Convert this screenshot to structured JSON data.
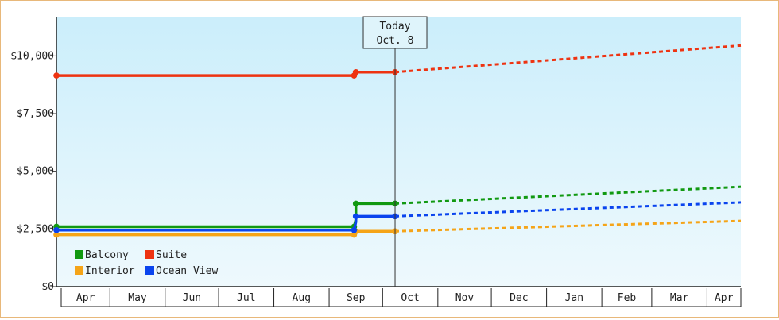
{
  "chart_data": {
    "type": "line",
    "today_label": "Today",
    "today_date": "Oct. 8",
    "today_x": "2024-10-08",
    "x_months": [
      "Apr",
      "May",
      "Jun",
      "Jul",
      "Aug",
      "Sep",
      "Oct",
      "Nov",
      "Dec",
      "Jan",
      "Feb",
      "Mar",
      "Apr"
    ],
    "x_range": [
      "2024-04-01",
      "2025-04-20"
    ],
    "ylim": [
      0,
      11700
    ],
    "y_ticks": [
      0,
      2500,
      5000,
      7500,
      10000
    ],
    "y_tick_labels": [
      "$0",
      "$2,500",
      "$5,000",
      "$7,500",
      "$10,000"
    ],
    "grid": false,
    "legend_position": "bottom-left",
    "series": [
      {
        "name": "Balcony",
        "color": "#119911",
        "historical": [
          [
            "2024-04-01",
            2600
          ],
          [
            "2024-09-15",
            2600
          ],
          [
            "2024-09-16",
            2900
          ],
          [
            "2024-09-16",
            3600
          ],
          [
            "2024-10-08",
            3600
          ]
        ],
        "projected": [
          [
            "2024-10-08",
            3600
          ],
          [
            "2025-04-20",
            4330
          ]
        ]
      },
      {
        "name": "Suite",
        "color": "#ee3311",
        "historical": [
          [
            "2024-04-01",
            9150
          ],
          [
            "2024-09-15",
            9150
          ],
          [
            "2024-09-16",
            9200
          ],
          [
            "2024-09-16",
            9300
          ],
          [
            "2024-10-08",
            9300
          ]
        ],
        "projected": [
          [
            "2024-10-08",
            9300
          ],
          [
            "2025-04-20",
            10450
          ]
        ]
      },
      {
        "name": "Interior",
        "color": "#f5a418",
        "historical": [
          [
            "2024-04-01",
            2250
          ],
          [
            "2024-09-15",
            2250
          ],
          [
            "2024-09-16",
            2400
          ],
          [
            "2024-10-08",
            2400
          ]
        ],
        "projected": [
          [
            "2024-10-08",
            2400
          ],
          [
            "2025-04-20",
            2850
          ]
        ]
      },
      {
        "name": "Ocean View",
        "color": "#0a44ee",
        "historical": [
          [
            "2024-04-01",
            2450
          ],
          [
            "2024-09-15",
            2450
          ],
          [
            "2024-09-16",
            2800
          ],
          [
            "2024-09-16",
            3050
          ],
          [
            "2024-10-08",
            3050
          ]
        ],
        "projected": [
          [
            "2024-10-08",
            3050
          ],
          [
            "2025-04-20",
            3650
          ]
        ]
      }
    ]
  }
}
